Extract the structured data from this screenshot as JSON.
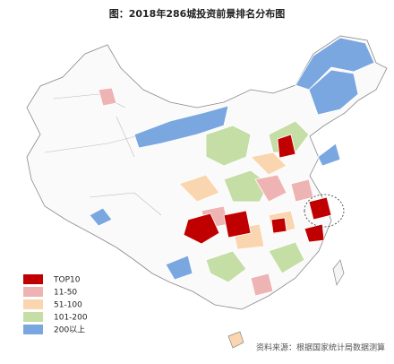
{
  "title": "图：2018年286城投资前景排名分布图",
  "legend": [
    {
      "label": "TOP10",
      "color": "#c00000"
    },
    {
      "label": "11-50",
      "color": "#eeb4b4"
    },
    {
      "label": "51-100",
      "color": "#f9d6b0"
    },
    {
      "label": "101-200",
      "color": "#c4dea6"
    },
    {
      "label": "200以上",
      "color": "#7ba7e1"
    }
  ],
  "source": "资料来源：根据国家统计局数据测算"
}
